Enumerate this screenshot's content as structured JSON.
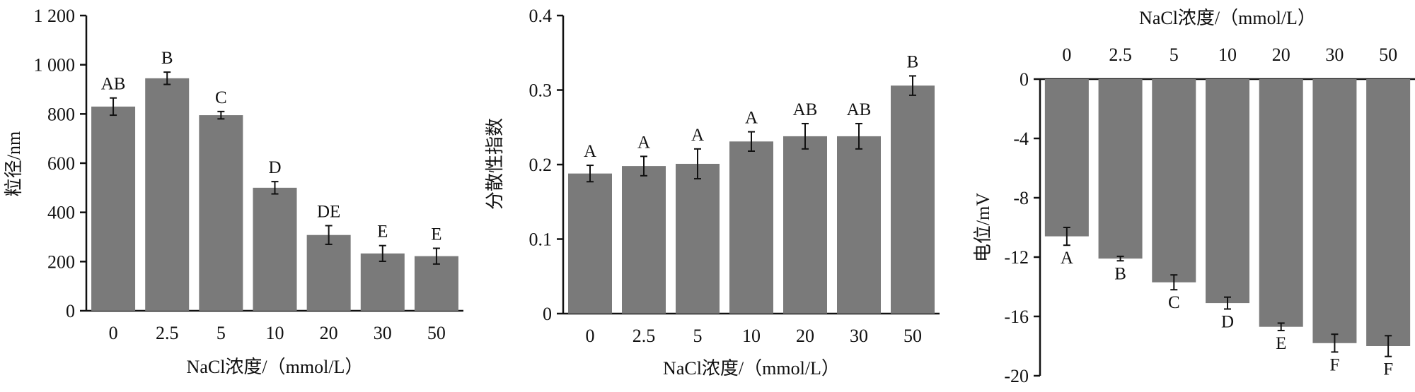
{
  "chart_data": [
    {
      "type": "bar",
      "categories": [
        "0",
        "2.5",
        "5",
        "10",
        "20",
        "30",
        "50"
      ],
      "values": [
        830,
        945,
        795,
        500,
        308,
        233,
        222
      ],
      "errors": [
        35,
        25,
        15,
        25,
        38,
        32,
        32
      ],
      "significance": [
        "AB",
        "B",
        "C",
        "D",
        "DE",
        "E",
        "E"
      ],
      "xlabel": "NaCl浓度/（mmol/L）",
      "ylabel": "粒径/nm",
      "ylim": [
        0,
        1200
      ],
      "yticks": [
        0,
        200,
        400,
        600,
        800,
        1000,
        1200
      ],
      "ytick_labels": [
        "0",
        "200",
        "400",
        "600",
        "800",
        "1 000",
        "1 200"
      ],
      "bar_color": "#7a7a7a"
    },
    {
      "type": "bar",
      "categories": [
        "0",
        "2.5",
        "5",
        "10",
        "20",
        "30",
        "50"
      ],
      "values": [
        0.188,
        0.198,
        0.201,
        0.231,
        0.238,
        0.238,
        0.306
      ],
      "errors": [
        0.011,
        0.013,
        0.02,
        0.013,
        0.017,
        0.017,
        0.013
      ],
      "significance": [
        "A",
        "A",
        "A",
        "A",
        "AB",
        "AB",
        "B"
      ],
      "xlabel": "NaCl浓度/（mmol/L）",
      "ylabel": "分散性指数",
      "ylim": [
        0,
        0.4
      ],
      "yticks": [
        0,
        0.1,
        0.2,
        0.3,
        0.4
      ],
      "ytick_labels": [
        "0",
        "0.1",
        "0.2",
        "0.3",
        "0.4"
      ],
      "bar_color": "#7a7a7a"
    },
    {
      "type": "bar",
      "categories": [
        "0",
        "2.5",
        "5",
        "10",
        "20",
        "30",
        "50"
      ],
      "values": [
        -10.6,
        -12.1,
        -13.7,
        -15.1,
        -16.7,
        -17.8,
        -18.0
      ],
      "errors": [
        0.6,
        0.15,
        0.5,
        0.4,
        0.25,
        0.6,
        0.7
      ],
      "significance": [
        "A",
        "B",
        "C",
        "D",
        "E",
        "F",
        "F"
      ],
      "xlabel": "NaCl浓度/（mmol/L）",
      "ylabel": "电位/mV",
      "ylim": [
        -20,
        0
      ],
      "yticks": [
        0,
        -4,
        -8,
        -12,
        -16,
        -20
      ],
      "ytick_labels": [
        "0",
        "-4",
        "-8",
        "-12",
        "-16",
        "-20"
      ],
      "x_axis_position": "top",
      "bar_color": "#7a7a7a"
    }
  ]
}
